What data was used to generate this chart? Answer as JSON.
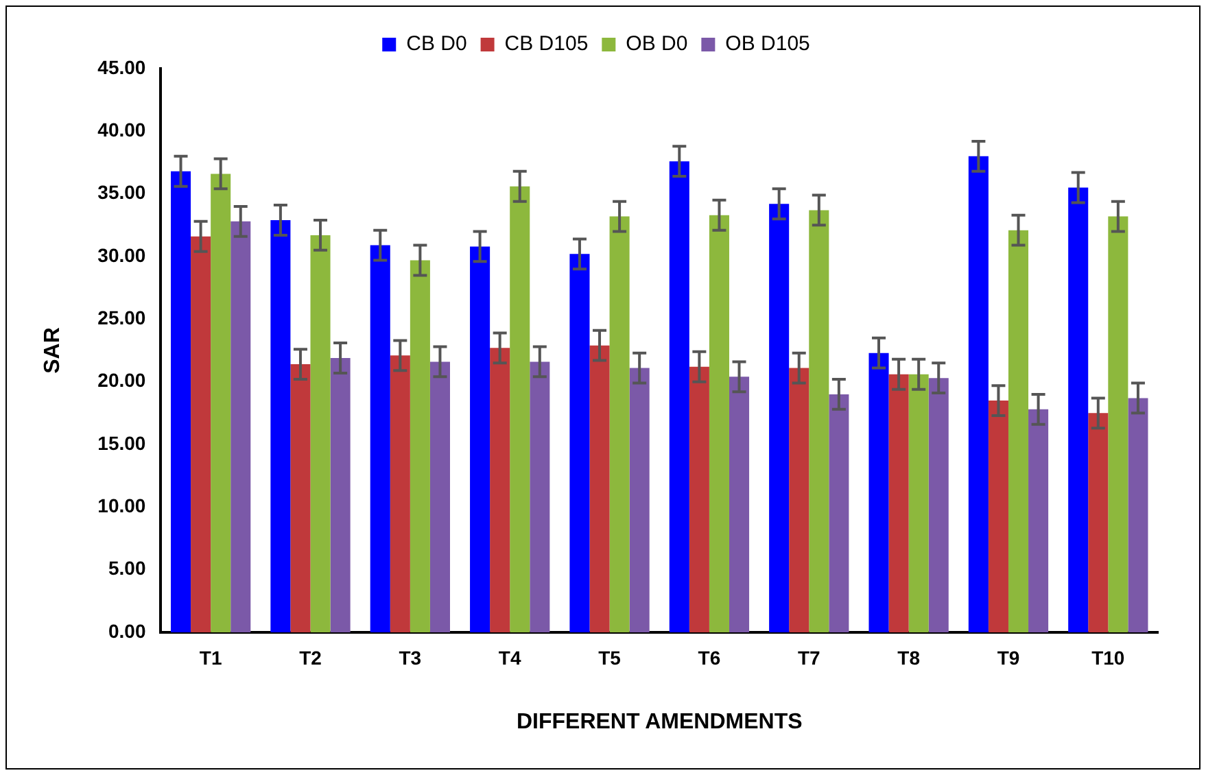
{
  "chart_data": {
    "type": "bar",
    "xlabel": "DIFFERENT AMENDMENTS",
    "ylabel": "SAR",
    "categories": [
      "T1",
      "T2",
      "T3",
      "T4",
      "T5",
      "T6",
      "T7",
      "T8",
      "T9",
      "T10"
    ],
    "series": [
      {
        "name": "CB D0",
        "color": "#0000ff",
        "values": [
          36.8,
          32.9,
          30.9,
          30.8,
          30.2,
          37.6,
          34.2,
          22.3,
          38.0,
          35.5
        ],
        "errors": [
          1.2,
          1.2,
          1.2,
          1.2,
          1.2,
          1.2,
          1.2,
          1.2,
          1.2,
          1.2
        ]
      },
      {
        "name": "CB D105",
        "color": "#c0393b",
        "values": [
          31.6,
          21.4,
          22.1,
          22.7,
          22.9,
          21.2,
          21.1,
          20.6,
          18.5,
          17.5
        ],
        "errors": [
          1.2,
          1.2,
          1.2,
          1.2,
          1.2,
          1.2,
          1.2,
          1.2,
          1.2,
          1.2
        ]
      },
      {
        "name": "OB D0",
        "color": "#8db83d",
        "values": [
          36.6,
          31.7,
          29.7,
          35.6,
          33.2,
          33.3,
          33.7,
          20.6,
          32.1,
          33.2
        ],
        "errors": [
          1.2,
          1.2,
          1.2,
          1.2,
          1.2,
          1.2,
          1.2,
          1.2,
          1.2,
          1.2
        ]
      },
      {
        "name": "OB D105",
        "color": "#7b59a8",
        "values": [
          32.8,
          21.9,
          21.6,
          21.6,
          21.1,
          20.4,
          19.0,
          20.3,
          17.8,
          18.7
        ],
        "errors": [
          1.2,
          1.2,
          1.2,
          1.2,
          1.2,
          1.2,
          1.2,
          1.2,
          1.2,
          1.2
        ]
      }
    ],
    "ylim": [
      0,
      45
    ],
    "yticks": [
      {
        "value": 0,
        "label": "0.00"
      },
      {
        "value": 5,
        "label": "5.00"
      },
      {
        "value": 10,
        "label": "10.00"
      },
      {
        "value": 15,
        "label": "15.00"
      },
      {
        "value": 20,
        "label": "20.00"
      },
      {
        "value": 25,
        "label": "25.00"
      },
      {
        "value": 30,
        "label": "30.00"
      },
      {
        "value": 35,
        "label": "35.00"
      },
      {
        "value": 40,
        "label": "40.00"
      },
      {
        "value": 45,
        "label": "45.00"
      }
    ],
    "grid": false,
    "legend": "top"
  }
}
